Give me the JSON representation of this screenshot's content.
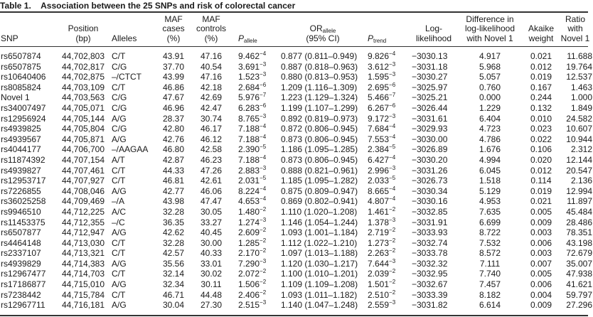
{
  "caption": {
    "label": "Table 1.",
    "title": "Association between the 25 SNPs and risk of colorectal cancer"
  },
  "headers": {
    "snp": "SNP",
    "position_l1": "Position",
    "position_l2": "(bp)",
    "alleles": "Alleles",
    "maf_cases_l1": "MAF",
    "maf_cases_l2": "cases",
    "maf_cases_l3": "(%)",
    "maf_controls_l1": "MAF",
    "maf_controls_l2": "controls",
    "maf_controls_l3": "(%)",
    "p_allele_main": "P",
    "p_allele_sub": "allele",
    "or_main": "OR",
    "or_sub": "allele",
    "or_l2": "(95% CI)",
    "p_trend_main": "P",
    "p_trend_sub": "trend",
    "loglik_l1": "Log-",
    "loglik_l2": "likelihood",
    "diff_l1": "Difference in",
    "diff_l2": "log-likelihood",
    "diff_l3": "with Novel 1",
    "akaike_l1": "Akaike",
    "akaike_l2": "weight",
    "ratio_l1": "Ratio",
    "ratio_l2": "with",
    "ratio_l3": "Novel 1"
  },
  "rows": [
    {
      "snp": "rs6507874",
      "pos": "44,702,803",
      "alleles": "C/T",
      "maf_cases": "43.91",
      "maf_controls": "47.16",
      "p_allele": "9.462",
      "p_allele_exp": "−4",
      "or": "0.877 (0.811–0.949)",
      "p_trend": "9.826",
      "p_trend_exp": "−4",
      "loglik": "−3030.13",
      "diff": "4.917",
      "akaike": "0.021",
      "ratio": "11.688"
    },
    {
      "snp": "rs6507875",
      "pos": "44,702,817",
      "alleles": "C/G",
      "maf_cases": "37.70",
      "maf_controls": "40.54",
      "p_allele": "3.691",
      "p_allele_exp": "−3",
      "or": "0.887 (0.818–0.963)",
      "p_trend": "3.612",
      "p_trend_exp": "−3",
      "loglik": "−3031.18",
      "diff": "5.968",
      "akaike": "0.012",
      "ratio": "19.764"
    },
    {
      "snp": "rs10640406",
      "pos": "44,702,875",
      "alleles": "–/CTCT",
      "maf_cases": "43.99",
      "maf_controls": "47.16",
      "p_allele": "1.523",
      "p_allele_exp": "−3",
      "or": "0.880 (0.813–0.953)",
      "p_trend": "1.595",
      "p_trend_exp": "−3",
      "loglik": "−3030.27",
      "diff": "5.057",
      "akaike": "0.019",
      "ratio": "12.537"
    },
    {
      "snp": "rs8085824",
      "pos": "44,703,109",
      "alleles": "C/T",
      "maf_cases": "46.86",
      "maf_controls": "42.18",
      "p_allele": "2.684",
      "p_allele_exp": "−6",
      "or": "1.209 (1.116–1.309)",
      "p_trend": "2.695",
      "p_trend_exp": "−6",
      "loglik": "−3025.97",
      "diff": "0.760",
      "akaike": "0.167",
      "ratio": "1.463"
    },
    {
      "snp": "Novel 1",
      "pos": "44,703,563",
      "alleles": "C/G",
      "maf_cases": "47.67",
      "maf_controls": "42.69",
      "p_allele": "5.976",
      "p_allele_exp": "−7",
      "or": "1.223 (1.129–1.324)",
      "p_trend": "5.466",
      "p_trend_exp": "−7",
      "loglik": "−3025.21",
      "diff": "0.000",
      "akaike": "0.244",
      "ratio": "1.000"
    },
    {
      "snp": "rs34007497",
      "pos": "44,705,071",
      "alleles": "C/G",
      "maf_cases": "46.96",
      "maf_controls": "42.47",
      "p_allele": "6.283",
      "p_allele_exp": "−6",
      "or": "1.199 (1.107–1.299)",
      "p_trend": "6.267",
      "p_trend_exp": "−6",
      "loglik": "−3026.44",
      "diff": "1.229",
      "akaike": "0.132",
      "ratio": "1.849"
    },
    {
      "snp": "rs12956924",
      "pos": "44,705,144",
      "alleles": "A/G",
      "maf_cases": "28.37",
      "maf_controls": "30.74",
      "p_allele": "8.765",
      "p_allele_exp": "−3",
      "or": "0.892 (0.819–0.973)",
      "p_trend": "9.172",
      "p_trend_exp": "−3",
      "loglik": "−3031.61",
      "diff": "6.404",
      "akaike": "0.010",
      "ratio": "24.582"
    },
    {
      "snp": "rs4939825",
      "pos": "44,705,804",
      "alleles": "C/G",
      "maf_cases": "42.80",
      "maf_controls": "46.17",
      "p_allele": "7.188",
      "p_allele_exp": "−4",
      "or": "0.872 (0.806–0.945)",
      "p_trend": "7.684",
      "p_trend_exp": "−4",
      "loglik": "−3029.93",
      "diff": "4.723",
      "akaike": "0.023",
      "ratio": "10.607"
    },
    {
      "snp": "rs4939567",
      "pos": "44,705,871",
      "alleles": "A/G",
      "maf_cases": "42.76",
      "maf_controls": "46.12",
      "p_allele": "7.188",
      "p_allele_exp": "−4",
      "or": "0.873 (0.806–0.945)",
      "p_trend": "7.553",
      "p_trend_exp": "−4",
      "loglik": "−3030.00",
      "diff": "4.786",
      "akaike": "0.022",
      "ratio": "10.944"
    },
    {
      "snp": "rs4044177",
      "pos": "44,706,700",
      "alleles": "–/AAGAA",
      "maf_cases": "46.80",
      "maf_controls": "42.58",
      "p_allele": "2.390",
      "p_allele_exp": "−5",
      "or": "1.186 (1.095–1.285)",
      "p_trend": "2.384",
      "p_trend_exp": "−5",
      "loglik": "−3026.89",
      "diff": "1.676",
      "akaike": "0.106",
      "ratio": "2.312"
    },
    {
      "snp": "rs11874392",
      "pos": "44,707,154",
      "alleles": "A/T",
      "maf_cases": "42.87",
      "maf_controls": "46.23",
      "p_allele": "7.188",
      "p_allele_exp": "−4",
      "or": "0.873 (0.806–0.945)",
      "p_trend": "6.427",
      "p_trend_exp": "−4",
      "loglik": "−3030.20",
      "diff": "4.994",
      "akaike": "0.020",
      "ratio": "12.144"
    },
    {
      "snp": "rs4939827",
      "pos": "44,707,461",
      "alleles": "C/T",
      "maf_cases": "44.33",
      "maf_controls": "47.26",
      "p_allele": "2.883",
      "p_allele_exp": "−3",
      "or": "0.888 (0.821–0.961)",
      "p_trend": "2.996",
      "p_trend_exp": "−3",
      "loglik": "−3031.26",
      "diff": "6.045",
      "akaike": "0.012",
      "ratio": "20.547"
    },
    {
      "snp": "rs12953717",
      "pos": "44,707,927",
      "alleles": "C/T",
      "maf_cases": "46.81",
      "maf_controls": "42.61",
      "p_allele": "2.031",
      "p_allele_exp": "−5",
      "or": "1.185 (1.095–1.282)",
      "p_trend": "2.033",
      "p_trend_exp": "−5",
      "loglik": "−3026.73",
      "diff": "1.518",
      "akaike": "0.114",
      "ratio": "2.136"
    },
    {
      "snp": "rs7226855",
      "pos": "44,708,046",
      "alleles": "A/G",
      "maf_cases": "42.77",
      "maf_controls": "46.06",
      "p_allele": "8.224",
      "p_allele_exp": "−4",
      "or": "0.875 (0.809–0.947)",
      "p_trend": "8.665",
      "p_trend_exp": "−4",
      "loglik": "−3030.34",
      "diff": "5.129",
      "akaike": "0.019",
      "ratio": "12.994"
    },
    {
      "snp": "rs36025258",
      "pos": "44,709,469",
      "alleles": "–/A",
      "maf_cases": "43.98",
      "maf_controls": "47.47",
      "p_allele": "4.653",
      "p_allele_exp": "−4",
      "or": "0.869 (0.802–0.941)",
      "p_trend": "4.807",
      "p_trend_exp": "−4",
      "loglik": "−3030.16",
      "diff": "4.953",
      "akaike": "0.021",
      "ratio": "11.897"
    },
    {
      "snp": "rs9946510",
      "pos": "44,712,225",
      "alleles": "A/C",
      "maf_cases": "32.28",
      "maf_controls": "30.05",
      "p_allele": "1.480",
      "p_allele_exp": "−2",
      "or": "1.110 (1.020–1.208)",
      "p_trend": "1.461",
      "p_trend_exp": "−2",
      "loglik": "−3032.85",
      "diff": "7.635",
      "akaike": "0.005",
      "ratio": "45.484"
    },
    {
      "snp": "rs11453375",
      "pos": "44,712,355",
      "alleles": "–/C",
      "maf_cases": "36.35",
      "maf_controls": "33.27",
      "p_allele": "1.274",
      "p_allele_exp": "−3",
      "or": "1.146 (1.054–1.244)",
      "p_trend": "1.378",
      "p_trend_exp": "−3",
      "loglik": "−3031.91",
      "diff": "6.699",
      "akaike": "0.009",
      "ratio": "28.486"
    },
    {
      "snp": "rs6507877",
      "pos": "44,712,947",
      "alleles": "A/G",
      "maf_cases": "42.62",
      "maf_controls": "40.45",
      "p_allele": "2.609",
      "p_allele_exp": "−2",
      "or": "1.093 (1.001–1.184)",
      "p_trend": "2.719",
      "p_trend_exp": "−2",
      "loglik": "−3033.93",
      "diff": "8.722",
      "akaike": "0.003",
      "ratio": "78.351"
    },
    {
      "snp": "rs4464148",
      "pos": "44,713,030",
      "alleles": "C/T",
      "maf_cases": "32.28",
      "maf_controls": "30.00",
      "p_allele": "1.285",
      "p_allele_exp": "−2",
      "or": "1.112 (1.022–1.210)",
      "p_trend": "1.273",
      "p_trend_exp": "−2",
      "loglik": "−3032.74",
      "diff": "7.532",
      "akaike": "0.006",
      "ratio": "43.198"
    },
    {
      "snp": "rs2337107",
      "pos": "44,713,321",
      "alleles": "C/T",
      "maf_cases": "42.57",
      "maf_controls": "40.33",
      "p_allele": "2.170",
      "p_allele_exp": "−2",
      "or": "1.097 (1.013–1.188)",
      "p_trend": "2.263",
      "p_trend_exp": "−2",
      "loglik": "−3033.78",
      "diff": "8.572",
      "akaike": "0.003",
      "ratio": "72.679"
    },
    {
      "snp": "rs4939829",
      "pos": "44,714,383",
      "alleles": "A/G",
      "maf_cases": "35.56",
      "maf_controls": "33.01",
      "p_allele": "7.290",
      "p_allele_exp": "−3",
      "or": "1.120 (1.030–1.217)",
      "p_trend": "7.644",
      "p_trend_exp": "−3",
      "loglik": "−3032.32",
      "diff": "7.111",
      "akaike": "0.007",
      "ratio": "35.007"
    },
    {
      "snp": "rs12967477",
      "pos": "44,714,703",
      "alleles": "C/T",
      "maf_cases": "32.14",
      "maf_controls": "30.02",
      "p_allele": "2.072",
      "p_allele_exp": "−2",
      "or": "1.100 (1.010–1.201)",
      "p_trend": "2.039",
      "p_trend_exp": "−2",
      "loglik": "−3032.95",
      "diff": "7.740",
      "akaike": "0.005",
      "ratio": "47.938"
    },
    {
      "snp": "rs17186877",
      "pos": "44,715,010",
      "alleles": "A/G",
      "maf_cases": "32.34",
      "maf_controls": "30.11",
      "p_allele": "1.506",
      "p_allele_exp": "−2",
      "or": "1.109 (1.109–1.208)",
      "p_trend": "1.501",
      "p_trend_exp": "−2",
      "loglik": "−3032.67",
      "diff": "7.457",
      "akaike": "0.006",
      "ratio": "41.621"
    },
    {
      "snp": "rs7238442",
      "pos": "44,715,784",
      "alleles": "C/T",
      "maf_cases": "46.71",
      "maf_controls": "44.48",
      "p_allele": "2.406",
      "p_allele_exp": "−2",
      "or": "1.093 (1.011–1.182)",
      "p_trend": "2.510",
      "p_trend_exp": "−2",
      "loglik": "−3033.39",
      "diff": "8.182",
      "akaike": "0.004",
      "ratio": "59.797"
    },
    {
      "snp": "rs12967711",
      "pos": "44,716,181",
      "alleles": "A/G",
      "maf_cases": "30.04",
      "maf_controls": "27.30",
      "p_allele": "2.515",
      "p_allele_exp": "−3",
      "or": "1.140 (1.047–1.248)",
      "p_trend": "2.559",
      "p_trend_exp": "−3",
      "loglik": "−3031.82",
      "diff": "6.614",
      "akaike": "0.009",
      "ratio": "27.296"
    }
  ]
}
